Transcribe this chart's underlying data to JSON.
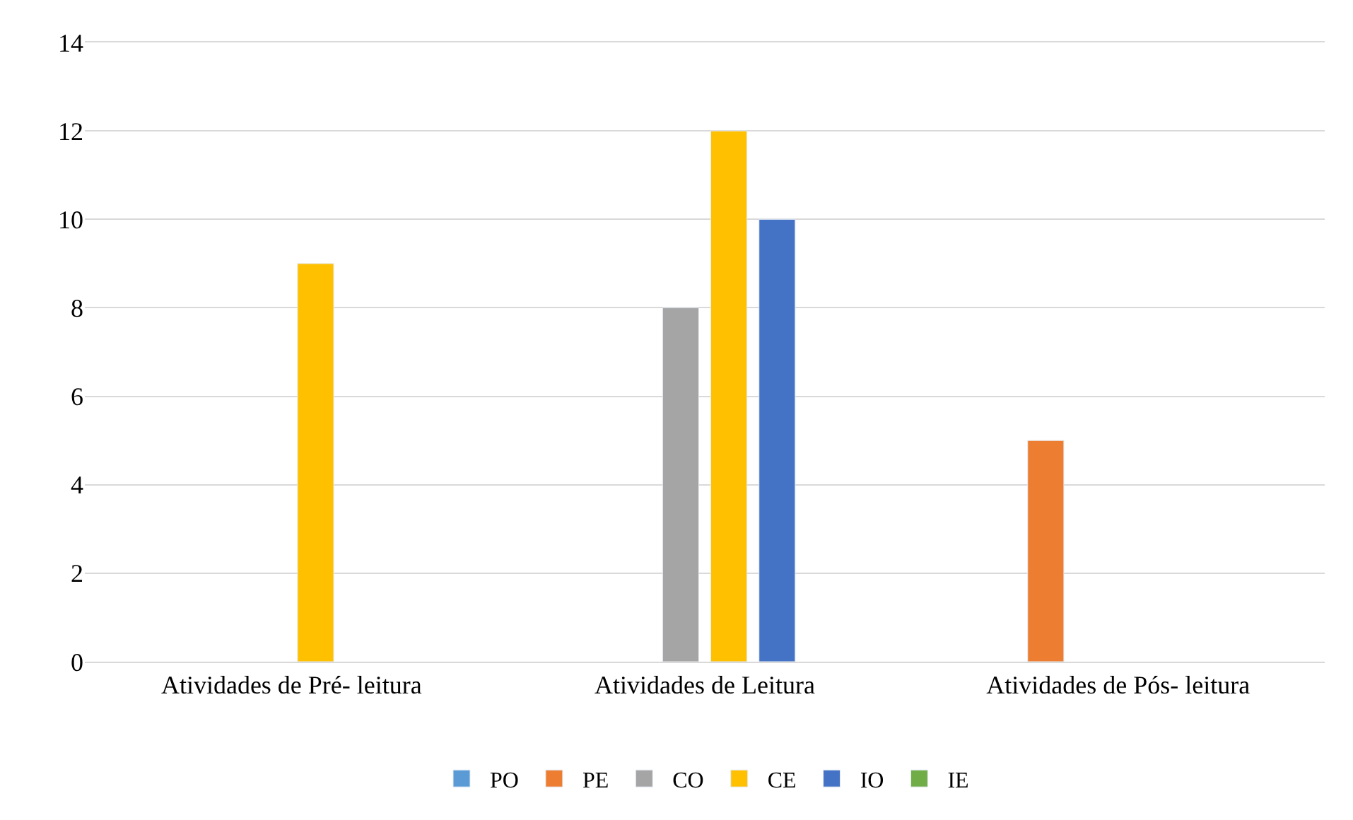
{
  "chart_data": {
    "type": "bar",
    "categories": [
      "Atividades de Pré- leitura",
      "Atividades de Leitura",
      "Atividades de Pós- leitura"
    ],
    "series": [
      {
        "name": "PO",
        "color": "#5b9bd5",
        "values": [
          null,
          null,
          null
        ]
      },
      {
        "name": "PE",
        "color": "#ed7d31",
        "values": [
          null,
          null,
          5
        ]
      },
      {
        "name": "CO",
        "color": "#a5a5a5",
        "values": [
          null,
          8,
          null
        ]
      },
      {
        "name": "CE",
        "color": "#ffc000",
        "values": [
          9,
          12,
          null
        ]
      },
      {
        "name": "IO",
        "color": "#4472c4",
        "values": [
          null,
          10,
          null
        ]
      },
      {
        "name": "IE",
        "color": "#70ad47",
        "values": [
          null,
          null,
          null
        ]
      }
    ],
    "ylim": [
      0,
      14
    ],
    "yticks": [
      0,
      2,
      4,
      6,
      8,
      10,
      12,
      14
    ],
    "grid": "y",
    "legend": "bottom"
  }
}
